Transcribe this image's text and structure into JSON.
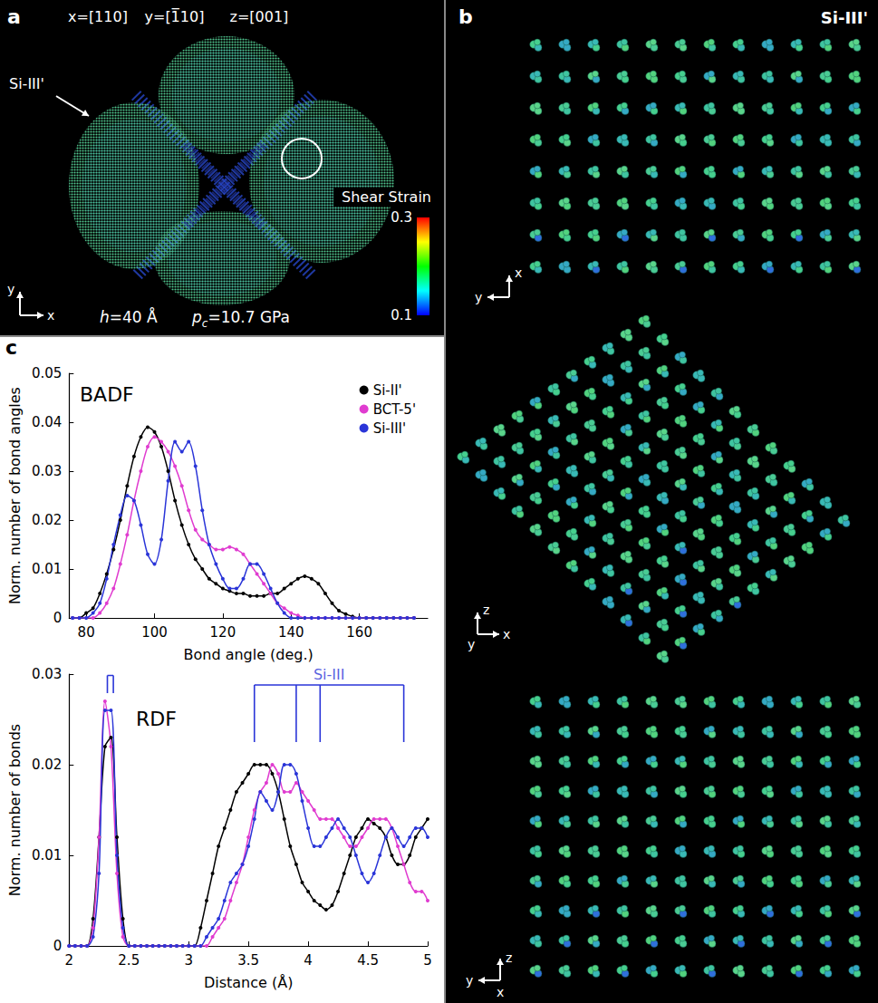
{
  "panel_a": {
    "letter": "a",
    "axes": [
      "x=[110]",
      "y=[1̅10]",
      "z=[001]"
    ],
    "phase_label": "Si-III'",
    "triad": [
      "y",
      "x"
    ],
    "height_label": {
      "symbol": "h",
      "text": "=40 Å"
    },
    "pressure_label": {
      "symbol": "p",
      "subscript": "c",
      "text": "=10.7 GPa"
    },
    "colorbar": {
      "label": "Shear Strain",
      "range": [
        0.1,
        0.3
      ],
      "ticks": [
        0.1,
        0.3
      ],
      "colors": [
        "#0000ff",
        "#00ffff",
        "#00ff00",
        "#ffff00",
        "#ff0000"
      ]
    }
  },
  "panel_b": {
    "letter": "b",
    "title": "Si-III'",
    "triads": [
      [
        "x",
        "y"
      ],
      [
        "z",
        "x",
        "y"
      ],
      [
        "z",
        "y",
        "x"
      ]
    ]
  },
  "panel_c": {
    "letter": "c"
  },
  "chart_data": [
    {
      "type": "line",
      "title": "BADF",
      "x_label": "Bond angle (deg.)",
      "y_label": "Norm. number of bond angles",
      "xlim": [
        75,
        180
      ],
      "xticks": [
        80,
        100,
        120,
        140,
        160
      ],
      "ylim": [
        0,
        0.05
      ],
      "yticks": [
        0,
        0.01,
        0.02,
        0.03,
        0.04,
        0.05
      ],
      "grid": false,
      "legend": "upper right",
      "marker": "circle",
      "x": [
        76,
        78,
        80,
        82,
        84,
        86,
        88,
        90,
        92,
        94,
        96,
        98,
        100,
        102,
        104,
        106,
        108,
        110,
        112,
        114,
        116,
        118,
        120,
        122,
        124,
        126,
        128,
        130,
        132,
        134,
        136,
        138,
        140,
        142,
        144,
        146,
        148,
        150,
        152,
        154,
        156,
        158,
        160,
        162,
        164,
        166,
        168,
        170,
        172,
        174,
        176
      ],
      "series": [
        {
          "name": "Si-II'",
          "color": "#000000",
          "values": [
            0,
            0,
            0.001,
            0.002,
            0.005,
            0.009,
            0.014,
            0.02,
            0.027,
            0.033,
            0.037,
            0.039,
            0.038,
            0.035,
            0.03,
            0.024,
            0.019,
            0.015,
            0.012,
            0.01,
            0.008,
            0.007,
            0.006,
            0.0055,
            0.005,
            0.005,
            0.0045,
            0.0045,
            0.0045,
            0.005,
            0.005,
            0.006,
            0.007,
            0.008,
            0.0085,
            0.008,
            0.007,
            0.005,
            0.003,
            0.0015,
            0.0008,
            0.0003,
            0,
            0,
            0,
            0,
            0,
            0,
            0,
            0,
            0
          ]
        },
        {
          "name": "BCT-5'",
          "color": "#e03cd0",
          "values": [
            0,
            0,
            0,
            0,
            0.001,
            0.003,
            0.006,
            0.011,
            0.017,
            0.024,
            0.03,
            0.035,
            0.037,
            0.036,
            0.034,
            0.031,
            0.027,
            0.022,
            0.018,
            0.016,
            0.015,
            0.014,
            0.014,
            0.0145,
            0.014,
            0.013,
            0.011,
            0.009,
            0.007,
            0.005,
            0.003,
            0.002,
            0.001,
            0.0005,
            0,
            0,
            0,
            0,
            0,
            0,
            0,
            0,
            0,
            0,
            0,
            0,
            0,
            0,
            0,
            0,
            0
          ]
        },
        {
          "name": "Si-III'",
          "color": "#2a35d8",
          "values": [
            0,
            0,
            0,
            0.001,
            0.003,
            0.008,
            0.015,
            0.021,
            0.025,
            0.024,
            0.019,
            0.013,
            0.011,
            0.016,
            0.028,
            0.036,
            0.034,
            0.036,
            0.031,
            0.022,
            0.015,
            0.011,
            0.008,
            0.006,
            0.006,
            0.008,
            0.011,
            0.011,
            0.009,
            0.006,
            0.003,
            0.001,
            0,
            0,
            0,
            0,
            0,
            0,
            0,
            0,
            0,
            0,
            0,
            0,
            0,
            0,
            0,
            0,
            0,
            0,
            0
          ]
        }
      ]
    },
    {
      "type": "line",
      "title": "RDF",
      "x_label": "Distance (Å)",
      "y_label": "Norm. number of bonds",
      "xlim": [
        2,
        5
      ],
      "xticks": [
        2,
        2.5,
        3,
        3.5,
        4,
        4.5,
        5
      ],
      "ylim": [
        0,
        0.03
      ],
      "yticks": [
        0,
        0.01,
        0.02,
        0.03
      ],
      "grid": false,
      "marker": "circle",
      "x": [
        2,
        2.05,
        2.1,
        2.15,
        2.2,
        2.25,
        2.3,
        2.35,
        2.4,
        2.45,
        2.5,
        2.55,
        2.6,
        2.65,
        2.7,
        2.75,
        2.8,
        2.85,
        2.9,
        2.95,
        3,
        3.05,
        3.1,
        3.15,
        3.2,
        3.25,
        3.3,
        3.35,
        3.4,
        3.45,
        3.5,
        3.55,
        3.6,
        3.65,
        3.7,
        3.75,
        3.8,
        3.85,
        3.9,
        3.95,
        4,
        4.05,
        4.1,
        4.15,
        4.2,
        4.25,
        4.3,
        4.35,
        4.4,
        4.45,
        4.5,
        4.55,
        4.6,
        4.65,
        4.7,
        4.75,
        4.8,
        4.85,
        4.9,
        4.95,
        5
      ],
      "series": [
        {
          "name": "Si-II'",
          "color": "#000000",
          "values": [
            0,
            0,
            0,
            0,
            0.003,
            0.012,
            0.022,
            0.023,
            0.012,
            0.003,
            0,
            0,
            0,
            0,
            0,
            0,
            0,
            0,
            0,
            0,
            0,
            0,
            0.002,
            0.005,
            0.008,
            0.011,
            0.013,
            0.015,
            0.017,
            0.018,
            0.019,
            0.02,
            0.02,
            0.02,
            0.019,
            0.017,
            0.014,
            0.011,
            0.009,
            0.007,
            0.006,
            0.005,
            0.0045,
            0.004,
            0.0045,
            0.006,
            0.008,
            0.01,
            0.012,
            0.013,
            0.014,
            0.0135,
            0.013,
            0.012,
            0.01,
            0.009,
            0.009,
            0.01,
            0.012,
            0.013,
            0.014
          ]
        },
        {
          "name": "BCT-5'",
          "color": "#e03cd0",
          "values": [
            0,
            0,
            0,
            0,
            0.002,
            0.012,
            0.027,
            0.022,
            0.008,
            0.001,
            0,
            0,
            0,
            0,
            0,
            0,
            0,
            0,
            0,
            0,
            0,
            0,
            0,
            0,
            0.001,
            0.002,
            0.003,
            0.005,
            0.007,
            0.009,
            0.012,
            0.015,
            0.017,
            0.018,
            0.02,
            0.019,
            0.017,
            0.017,
            0.018,
            0.017,
            0.016,
            0.015,
            0.014,
            0.014,
            0.014,
            0.013,
            0.012,
            0.011,
            0.011,
            0.012,
            0.013,
            0.014,
            0.014,
            0.014,
            0.013,
            0.011,
            0.009,
            0.007,
            0.006,
            0.006,
            0.005
          ]
        },
        {
          "name": "Si-III'",
          "color": "#2a35d8",
          "values": [
            0,
            0,
            0,
            0,
            0.001,
            0.008,
            0.026,
            0.026,
            0.01,
            0.002,
            0,
            0,
            0,
            0,
            0,
            0,
            0,
            0,
            0,
            0,
            0,
            0,
            0,
            0.001,
            0.002,
            0.003,
            0.005,
            0.007,
            0.008,
            0.009,
            0.011,
            0.014,
            0.017,
            0.016,
            0.015,
            0.017,
            0.02,
            0.02,
            0.019,
            0.016,
            0.013,
            0.011,
            0.011,
            0.012,
            0.013,
            0.014,
            0.013,
            0.012,
            0.01,
            0.008,
            0.007,
            0.008,
            0.01,
            0.012,
            0.013,
            0.012,
            0.011,
            0.012,
            0.013,
            0.013,
            0.012
          ]
        }
      ],
      "reference": {
        "label": "Si-III",
        "color": "#2a35d8",
        "groups": [
          [
            2.32,
            2.37
          ],
          [
            3.55,
            3.9,
            4.1,
            4.8
          ]
        ]
      }
    }
  ]
}
